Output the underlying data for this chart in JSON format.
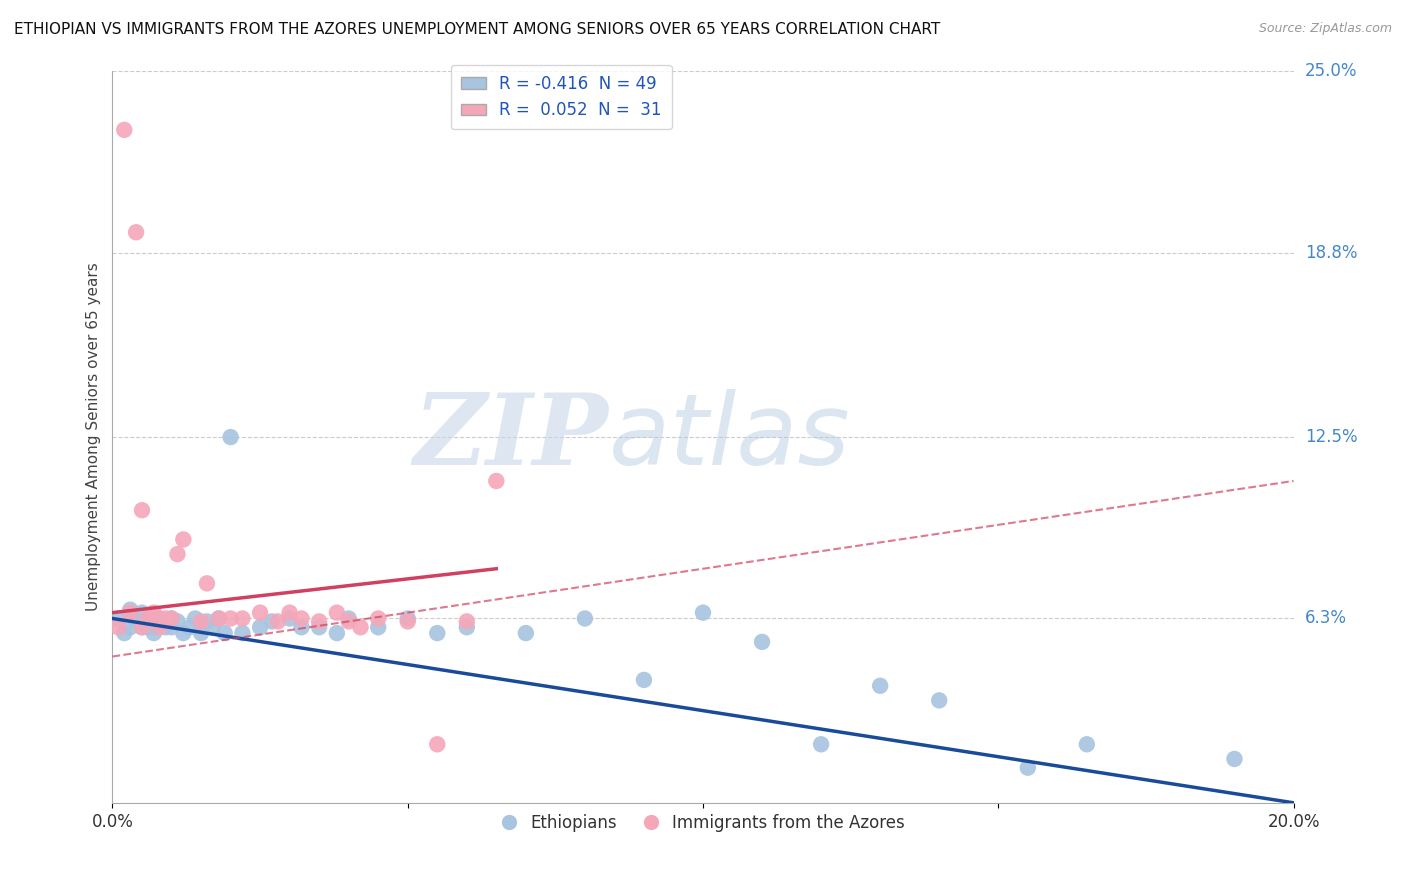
{
  "title": "ETHIOPIAN VS IMMIGRANTS FROM THE AZORES UNEMPLOYMENT AMONG SENIORS OVER 65 YEARS CORRELATION CHART",
  "source": "Source: ZipAtlas.com",
  "ylabel": "Unemployment Among Seniors over 65 years",
  "xlim": [
    0.0,
    0.2
  ],
  "ylim": [
    0.0,
    0.25
  ],
  "xticks": [
    0.0,
    0.05,
    0.1,
    0.15,
    0.2
  ],
  "xtick_labels": [
    "0.0%",
    "",
    "",
    "",
    "20.0%"
  ],
  "yticks_right": [
    0.25,
    0.188,
    0.125,
    0.063,
    0.0
  ],
  "ytick_labels_right": [
    "25.0%",
    "18.8%",
    "12.5%",
    "6.3%",
    ""
  ],
  "legend_r_blue": "-0.416",
  "legend_n_blue": "49",
  "legend_r_pink": "0.052",
  "legend_n_pink": "31",
  "blue_color": "#a8c4e0",
  "pink_color": "#f4a7b9",
  "blue_line_color": "#1a4a9a",
  "pink_line_color": "#d04060",
  "grid_color": "#cccccc",
  "blue_scatter_x": [
    0.001,
    0.002,
    0.003,
    0.003,
    0.004,
    0.005,
    0.005,
    0.006,
    0.006,
    0.007,
    0.007,
    0.008,
    0.009,
    0.01,
    0.01,
    0.011,
    0.012,
    0.013,
    0.014,
    0.015,
    0.015,
    0.016,
    0.017,
    0.018,
    0.019,
    0.02,
    0.022,
    0.025,
    0.027,
    0.03,
    0.032,
    0.035,
    0.038,
    0.04,
    0.045,
    0.05,
    0.055,
    0.06,
    0.07,
    0.08,
    0.09,
    0.1,
    0.11,
    0.12,
    0.13,
    0.14,
    0.155,
    0.165,
    0.19
  ],
  "blue_scatter_y": [
    0.063,
    0.058,
    0.06,
    0.066,
    0.062,
    0.06,
    0.065,
    0.06,
    0.063,
    0.058,
    0.06,
    0.063,
    0.06,
    0.06,
    0.063,
    0.062,
    0.058,
    0.06,
    0.063,
    0.058,
    0.06,
    0.062,
    0.06,
    0.063,
    0.058,
    0.125,
    0.058,
    0.06,
    0.062,
    0.063,
    0.06,
    0.06,
    0.058,
    0.063,
    0.06,
    0.063,
    0.058,
    0.06,
    0.058,
    0.063,
    0.042,
    0.065,
    0.055,
    0.02,
    0.04,
    0.035,
    0.012,
    0.02,
    0.015
  ],
  "pink_scatter_x": [
    0.001,
    0.002,
    0.003,
    0.004,
    0.005,
    0.005,
    0.006,
    0.007,
    0.008,
    0.009,
    0.01,
    0.011,
    0.012,
    0.015,
    0.016,
    0.018,
    0.02,
    0.022,
    0.025,
    0.028,
    0.03,
    0.032,
    0.035,
    0.038,
    0.04,
    0.042,
    0.045,
    0.05,
    0.055,
    0.06,
    0.065
  ],
  "pink_scatter_y": [
    0.06,
    0.23,
    0.065,
    0.195,
    0.06,
    0.1,
    0.063,
    0.065,
    0.06,
    0.063,
    0.063,
    0.085,
    0.09,
    0.062,
    0.075,
    0.063,
    0.063,
    0.063,
    0.065,
    0.062,
    0.065,
    0.063,
    0.062,
    0.065,
    0.062,
    0.06,
    0.063,
    0.062,
    0.02,
    0.062,
    0.11
  ]
}
